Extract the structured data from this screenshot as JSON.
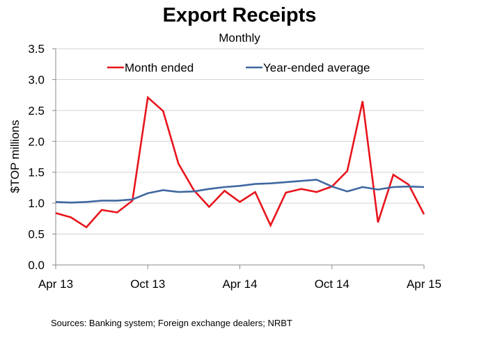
{
  "chart_data": {
    "type": "line",
    "title": "Export Receipts",
    "subtitle": "Monthly",
    "ylabel": "$TOP millions",
    "xlabel": "",
    "ylim": [
      0,
      3.5
    ],
    "y_ticks": [
      "0.0",
      "0.5",
      "1.0",
      "1.5",
      "2.0",
      "2.5",
      "3.0",
      "3.5"
    ],
    "x_tick_labels": [
      {
        "index": 0,
        "label": "Apr 13"
      },
      {
        "index": 6,
        "label": "Oct 13"
      },
      {
        "index": 12,
        "label": "Apr 14"
      },
      {
        "index": 18,
        "label": "Oct 14"
      },
      {
        "index": 24,
        "label": "Apr 15"
      }
    ],
    "x": [
      "Apr 13",
      "May 13",
      "Jun 13",
      "Jul 13",
      "Aug 13",
      "Sep 13",
      "Oct 13",
      "Nov 13",
      "Dec 13",
      "Jan 14",
      "Feb 14",
      "Mar 14",
      "Apr 14",
      "May 14",
      "Jun 14",
      "Jul 14",
      "Aug 14",
      "Sep 14",
      "Oct 14",
      "Nov 14",
      "Dec 14",
      "Jan 15",
      "Feb 15",
      "Mar 15",
      "Apr 15"
    ],
    "series": [
      {
        "name": "Month ended",
        "color": "#e8141c",
        "values": [
          0.84,
          0.77,
          0.61,
          0.89,
          0.85,
          1.04,
          2.71,
          2.49,
          1.64,
          1.21,
          0.94,
          1.2,
          1.02,
          1.18,
          0.64,
          1.17,
          1.23,
          1.18,
          1.27,
          1.52,
          2.65,
          0.69,
          1.46,
          1.3,
          0.82
        ]
      },
      {
        "name": "Year-ended average",
        "color": "#3f67a0",
        "values": [
          1.02,
          1.01,
          1.02,
          1.04,
          1.04,
          1.06,
          1.16,
          1.21,
          1.18,
          1.19,
          1.23,
          1.26,
          1.28,
          1.31,
          1.32,
          1.34,
          1.36,
          1.38,
          1.27,
          1.19,
          1.26,
          1.22,
          1.26,
          1.27,
          1.26
        ]
      }
    ],
    "legend_position": "top",
    "grid": "horizontal",
    "source_note": "Sources: Banking system; Foreign exchange dealers; NRBT"
  }
}
